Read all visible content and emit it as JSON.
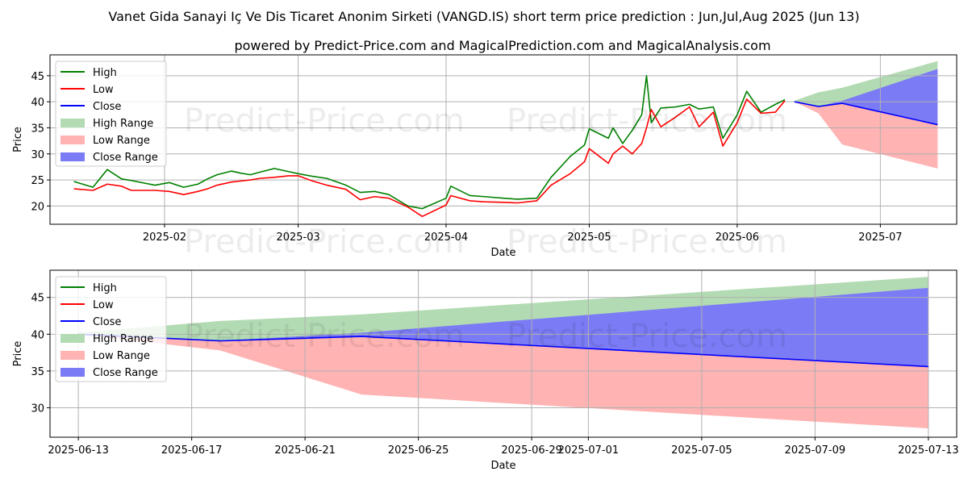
{
  "chart_data": [
    {
      "type": "line",
      "title": "Vanet Gida Sanayi Iç Ve Dis Ticaret Anonim Sirketi (VANGD.IS) short term price prediction : Jun,Jul,Aug 2025 (Jun 13)",
      "subtitle": "powered by Predict-Price.com and MagicalPrediction.com and MagicalAnalysis.com",
      "xlabel": "Date",
      "ylabel": "Price",
      "xlim": [
        "2025-01-08",
        "2025-07-17"
      ],
      "ylim": [
        16.5,
        49
      ],
      "xticks": [
        "2025-02",
        "2025-03",
        "2025-04",
        "2025-05",
        "2025-06",
        "2025-07"
      ],
      "xtick_dates": [
        "2025-02-01",
        "2025-03-01",
        "2025-04-01",
        "2025-05-01",
        "2025-06-01",
        "2025-07-01"
      ],
      "yticks": [
        20,
        25,
        30,
        35,
        40,
        45
      ],
      "legend": [
        "High",
        "Low",
        "Close",
        "High Range",
        "Low Range",
        "Close Range"
      ],
      "colors": {
        "high": "#008000",
        "low": "#ff0000",
        "close": "#0000ff",
        "high_range": "#b3dbb3",
        "low_range": "#ffb3b3",
        "close_range": "#7b7bf5"
      },
      "series": [
        {
          "name": "High",
          "x": [
            "2025-01-13",
            "2025-01-17",
            "2025-01-20",
            "2025-01-23",
            "2025-01-25",
            "2025-01-30",
            "2025-02-02",
            "2025-02-05",
            "2025-02-08",
            "2025-02-10",
            "2025-02-12",
            "2025-02-15",
            "2025-02-17",
            "2025-02-19",
            "2025-02-21",
            "2025-02-24",
            "2025-02-27",
            "2025-03-01",
            "2025-03-04",
            "2025-03-07",
            "2025-03-11",
            "2025-03-14",
            "2025-03-17",
            "2025-03-20",
            "2025-03-24",
            "2025-03-27",
            "2025-04-01",
            "2025-04-02",
            "2025-04-06",
            "2025-04-09",
            "2025-04-13",
            "2025-04-16",
            "2025-04-20",
            "2025-04-23",
            "2025-04-27",
            "2025-04-30",
            "2025-05-01",
            "2025-05-05",
            "2025-05-06",
            "2025-05-08",
            "2025-05-10",
            "2025-05-12",
            "2025-05-13",
            "2025-05-14",
            "2025-05-16",
            "2025-05-19",
            "2025-05-22",
            "2025-05-24",
            "2025-05-27",
            "2025-05-29",
            "2025-06-01",
            "2025-06-03",
            "2025-06-06",
            "2025-06-09",
            "2025-06-11"
          ],
          "values": [
            24.7,
            23.6,
            27.0,
            25.2,
            24.9,
            24.0,
            24.5,
            23.6,
            24.2,
            25.2,
            26.0,
            26.7,
            26.3,
            26.0,
            26.5,
            27.2,
            26.6,
            26.2,
            25.7,
            25.3,
            24.0,
            22.6,
            22.8,
            22.2,
            20.0,
            19.5,
            21.5,
            23.8,
            22.0,
            21.8,
            21.5,
            21.3,
            21.5,
            25.5,
            29.5,
            31.7,
            34.8,
            33.0,
            35.0,
            32.0,
            34.5,
            37.5,
            45.0,
            36.0,
            38.8,
            39.0,
            39.5,
            38.6,
            39.0,
            33.0,
            37.5,
            42.0,
            38.0,
            39.5,
            40.4
          ]
        },
        {
          "name": "Low",
          "x": [
            "2025-01-13",
            "2025-01-17",
            "2025-01-20",
            "2025-01-23",
            "2025-01-25",
            "2025-01-30",
            "2025-02-02",
            "2025-02-05",
            "2025-02-08",
            "2025-02-10",
            "2025-02-12",
            "2025-02-15",
            "2025-02-17",
            "2025-02-19",
            "2025-02-21",
            "2025-02-24",
            "2025-02-27",
            "2025-03-01",
            "2025-03-04",
            "2025-03-07",
            "2025-03-11",
            "2025-03-14",
            "2025-03-17",
            "2025-03-20",
            "2025-03-24",
            "2025-03-27",
            "2025-04-01",
            "2025-04-02",
            "2025-04-06",
            "2025-04-09",
            "2025-04-13",
            "2025-04-16",
            "2025-04-20",
            "2025-04-23",
            "2025-04-27",
            "2025-04-30",
            "2025-05-01",
            "2025-05-05",
            "2025-05-06",
            "2025-05-08",
            "2025-05-10",
            "2025-05-12",
            "2025-05-13",
            "2025-05-14",
            "2025-05-16",
            "2025-05-19",
            "2025-05-22",
            "2025-05-24",
            "2025-05-27",
            "2025-05-29",
            "2025-06-01",
            "2025-06-03",
            "2025-06-06",
            "2025-06-09",
            "2025-06-11"
          ],
          "values": [
            23.3,
            23.0,
            24.2,
            23.8,
            23.0,
            23.0,
            22.8,
            22.2,
            22.8,
            23.3,
            24.0,
            24.6,
            24.8,
            25.0,
            25.3,
            25.5,
            25.8,
            25.8,
            24.8,
            24.0,
            23.2,
            21.2,
            21.8,
            21.5,
            19.8,
            18.0,
            20.2,
            22.0,
            21.0,
            20.8,
            20.7,
            20.6,
            21.0,
            24.0,
            26.2,
            28.5,
            31.0,
            28.2,
            30.0,
            31.5,
            30.0,
            32.0,
            35.0,
            38.5,
            35.2,
            37.0,
            39.0,
            35.2,
            38.0,
            31.5,
            36.0,
            40.5,
            37.8,
            38.0,
            40.2
          ]
        },
        {
          "name": "Close",
          "x": [
            "2025-06-13",
            "2025-06-18",
            "2025-06-23",
            "2025-07-13"
          ],
          "values": [
            40.0,
            39.1,
            39.7,
            35.6
          ]
        },
        {
          "name": "High Range",
          "x": [
            "2025-06-13",
            "2025-06-18",
            "2025-06-23",
            "2025-07-13"
          ],
          "lower": [
            40.0,
            39.1,
            39.7,
            46.3
          ],
          "upper": [
            40.2,
            41.8,
            42.7,
            47.8
          ]
        },
        {
          "name": "Low Range",
          "x": [
            "2025-06-13",
            "2025-06-18",
            "2025-06-23",
            "2025-07-13"
          ],
          "lower": [
            40.0,
            37.8,
            31.8,
            27.2
          ],
          "upper": [
            40.0,
            39.1,
            39.7,
            35.6
          ]
        },
        {
          "name": "Close Range",
          "x": [
            "2025-06-13",
            "2025-06-18",
            "2025-06-23",
            "2025-07-13"
          ],
          "lower": [
            40.0,
            39.1,
            39.7,
            35.6
          ],
          "upper": [
            40.0,
            39.1,
            40.2,
            46.3
          ]
        }
      ]
    },
    {
      "type": "line",
      "xlabel": "Date",
      "ylabel": "Price",
      "xlim": [
        "2025-06-12",
        "2025-07-14"
      ],
      "ylim": [
        26,
        48.7
      ],
      "xticks": [
        "2025-06-13",
        "2025-06-17",
        "2025-06-21",
        "2025-06-25",
        "2025-06-29",
        "2025-07-01",
        "2025-07-05",
        "2025-07-09",
        "2025-07-13"
      ],
      "yticks": [
        30,
        35,
        40,
        45
      ],
      "legend": [
        "High",
        "Low",
        "Close",
        "High Range",
        "Low Range",
        "Close Range"
      ],
      "series": [
        {
          "name": "Close",
          "x": [
            "2025-06-13",
            "2025-06-18",
            "2025-06-23",
            "2025-07-13"
          ],
          "values": [
            40.0,
            39.1,
            39.7,
            35.6
          ]
        },
        {
          "name": "High Range",
          "x": [
            "2025-06-13",
            "2025-06-18",
            "2025-06-23",
            "2025-07-13"
          ],
          "lower": [
            40.0,
            39.1,
            39.7,
            46.3
          ],
          "upper": [
            40.2,
            41.8,
            42.7,
            47.8
          ]
        },
        {
          "name": "Low Range",
          "x": [
            "2025-06-13",
            "2025-06-18",
            "2025-06-23",
            "2025-07-13"
          ],
          "lower": [
            40.0,
            37.8,
            31.8,
            27.2
          ],
          "upper": [
            40.0,
            39.1,
            39.7,
            35.6
          ]
        },
        {
          "name": "Close Range",
          "x": [
            "2025-06-13",
            "2025-06-18",
            "2025-06-23",
            "2025-07-13"
          ],
          "lower": [
            40.0,
            39.1,
            39.7,
            35.6
          ],
          "upper": [
            40.0,
            39.1,
            40.2,
            46.3
          ]
        }
      ]
    }
  ],
  "watermark": "Predict-Price.com"
}
